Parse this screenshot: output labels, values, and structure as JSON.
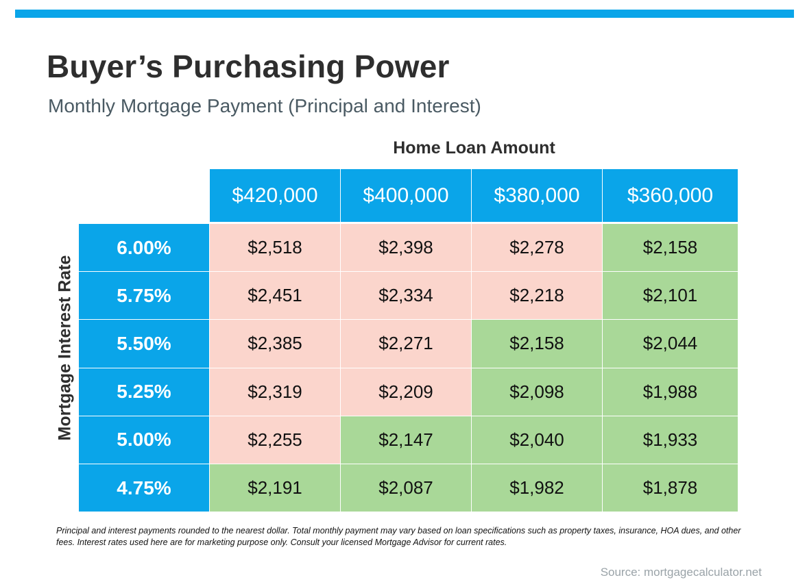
{
  "header": {
    "title": "Buyer’s Purchasing Power",
    "subtitle": "Monthly Mortgage Payment (Principal and Interest)"
  },
  "chart_data": {
    "type": "table",
    "column_group_label": "Home Loan Amount",
    "row_group_label": "Mortgage Interest Rate",
    "columns": [
      "$420,000",
      "$400,000",
      "$380,000",
      "$360,000"
    ],
    "rows": [
      {
        "label": "6.00%",
        "values": [
          "$2,518",
          "$2,398",
          "$2,278",
          "$2,158"
        ],
        "colors": [
          "pink",
          "pink",
          "pink",
          "green"
        ]
      },
      {
        "label": "5.75%",
        "values": [
          "$2,451",
          "$2,334",
          "$2,218",
          "$2,101"
        ],
        "colors": [
          "pink",
          "pink",
          "pink",
          "green"
        ]
      },
      {
        "label": "5.50%",
        "values": [
          "$2,385",
          "$2,271",
          "$2,158",
          "$2,044"
        ],
        "colors": [
          "pink",
          "pink",
          "green",
          "green"
        ]
      },
      {
        "label": "5.25%",
        "values": [
          "$2,319",
          "$2,209",
          "$2,098",
          "$1,988"
        ],
        "colors": [
          "pink",
          "pink",
          "green",
          "green"
        ]
      },
      {
        "label": "5.00%",
        "values": [
          "$2,255",
          "$2,147",
          "$2,040",
          "$1,933"
        ],
        "colors": [
          "pink",
          "green",
          "green",
          "green"
        ]
      },
      {
        "label": "4.75%",
        "values": [
          "$2,191",
          "$2,087",
          "$1,982",
          "$1,878"
        ],
        "colors": [
          "green",
          "green",
          "green",
          "green"
        ]
      }
    ]
  },
  "colors": {
    "accent": "#0aa5e9",
    "pink": "#fbd5cc",
    "green": "#a9d898",
    "grid_line": "#ffffff"
  },
  "footer": {
    "note": "Principal and interest payments rounded to the nearest dollar. Total monthly payment may vary based on loan specifications such as property taxes, insurance, HOA dues, and other fees. Interest rates used here are for marketing purpose only. Consult your licensed Mortgage Advisor for current rates.",
    "source": "Source: mortgagecalculator.net"
  }
}
